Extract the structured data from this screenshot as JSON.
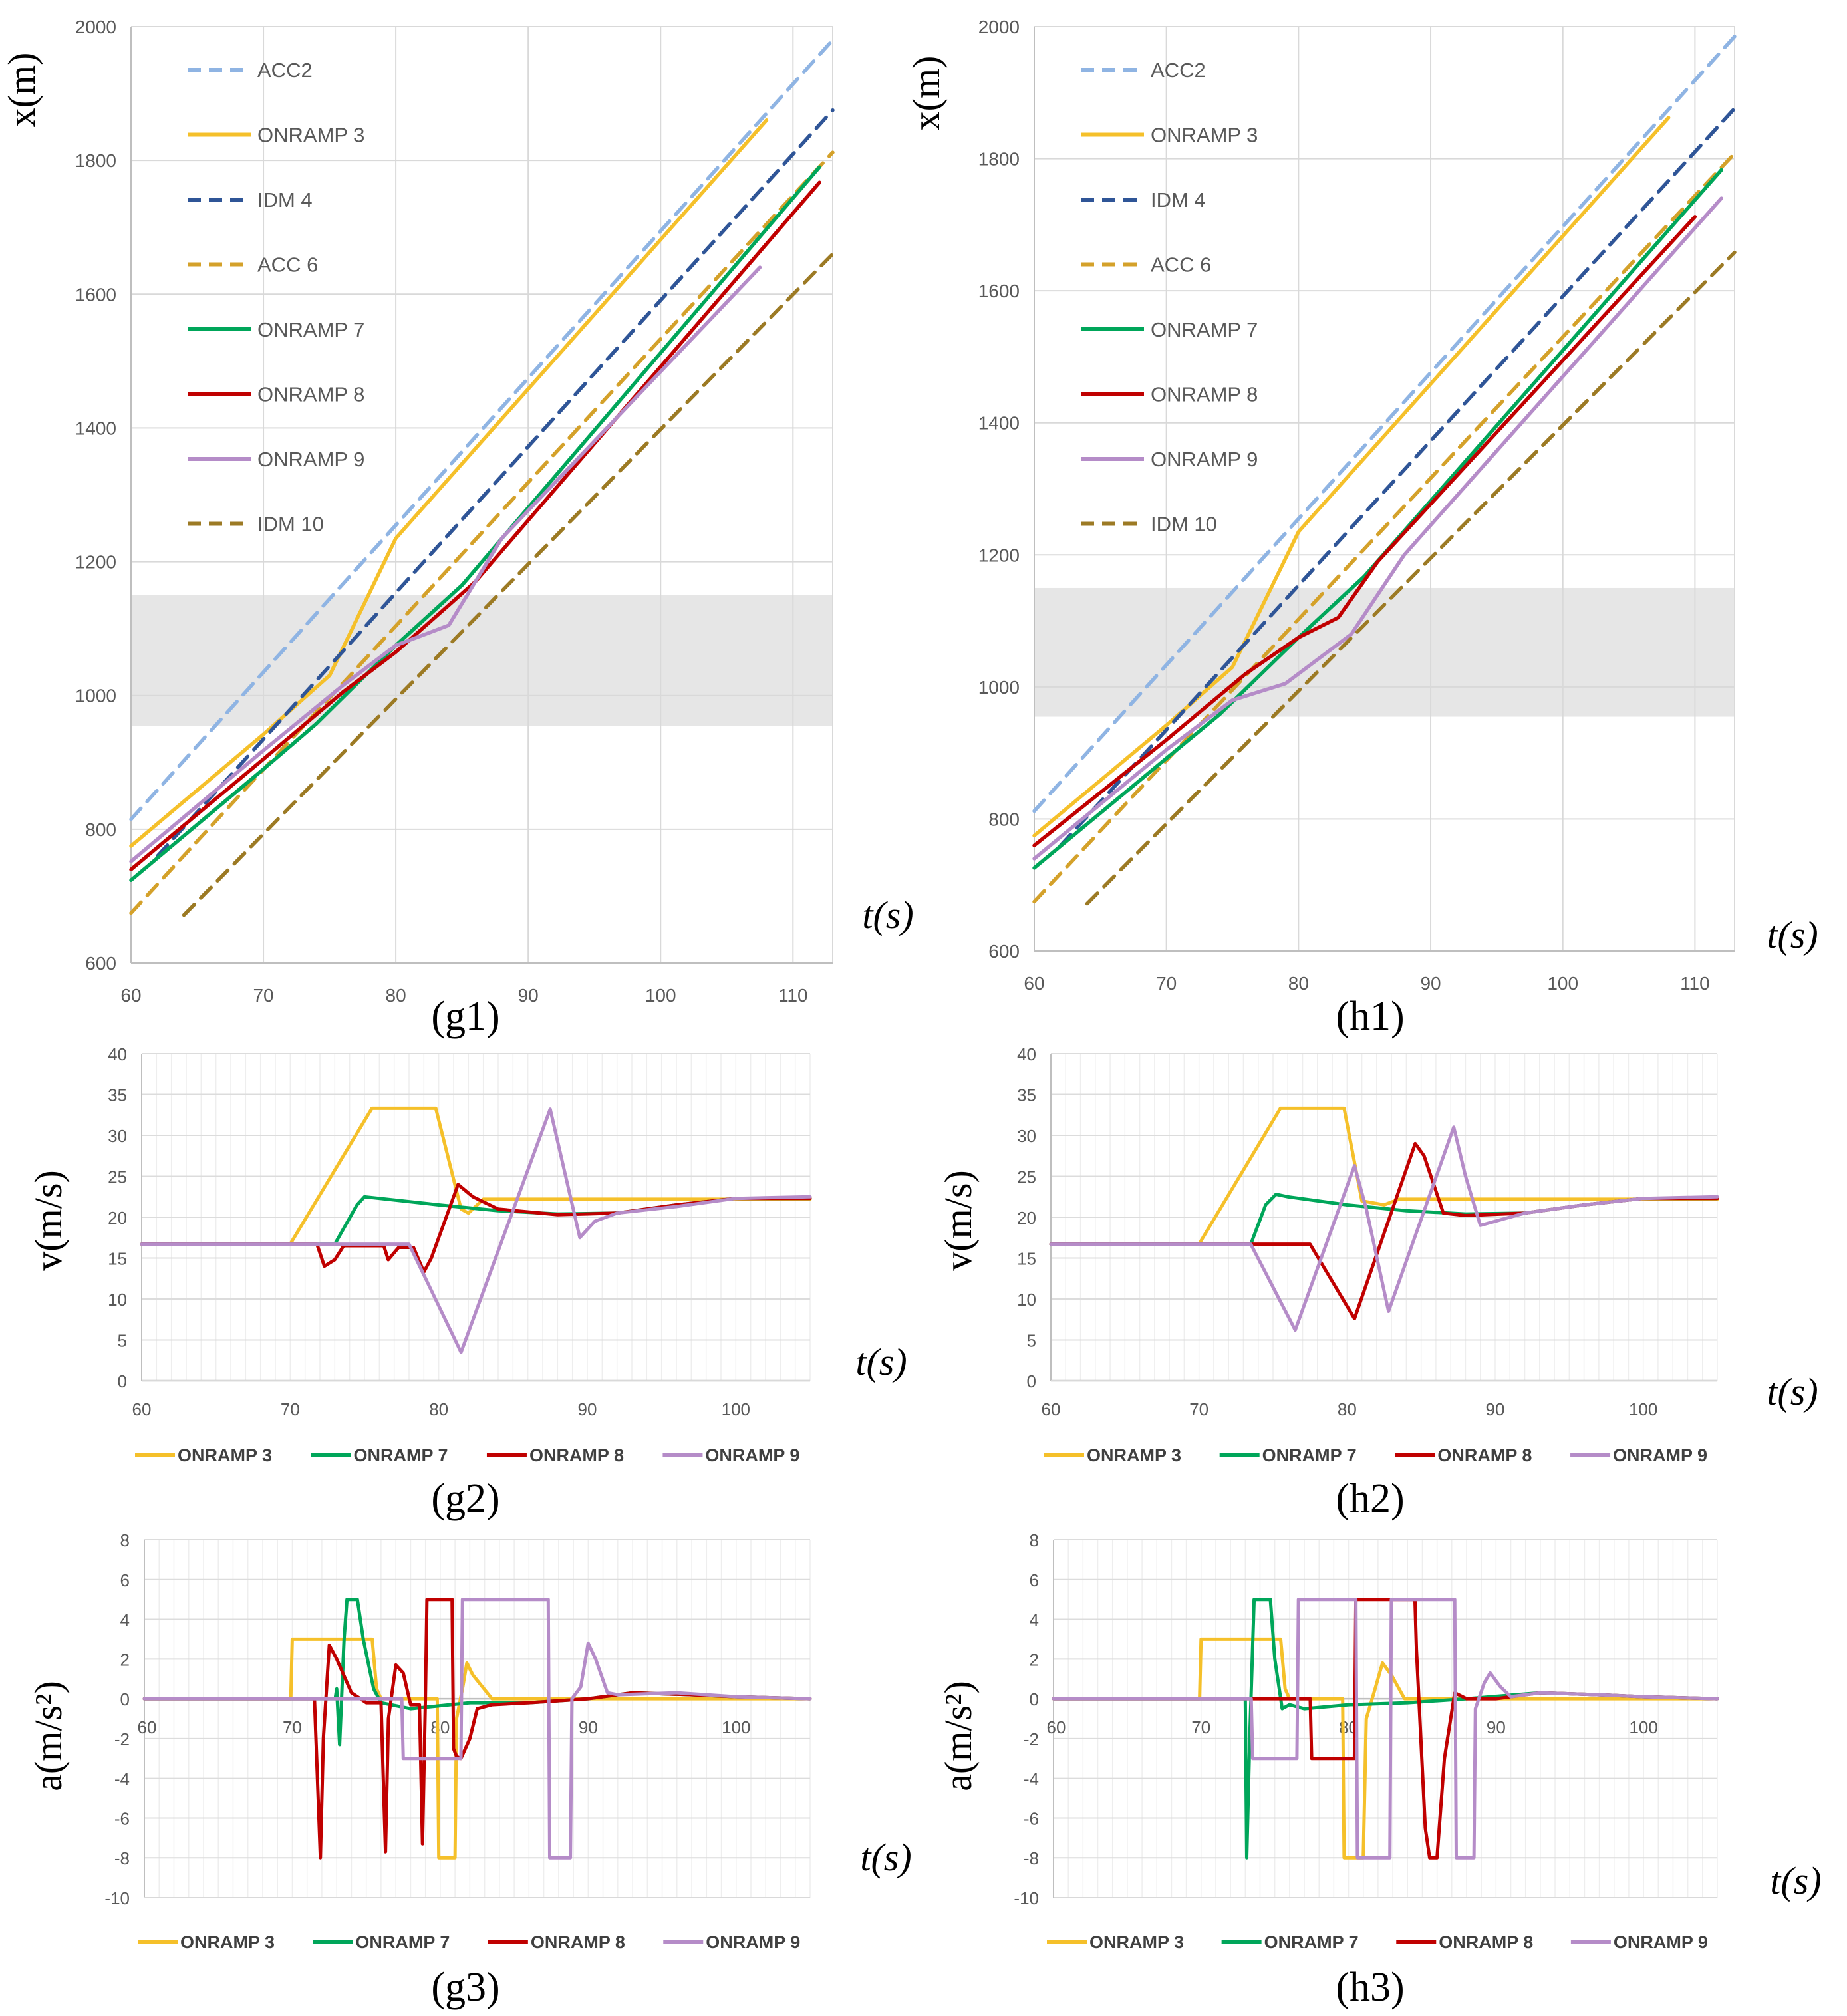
{
  "series_styles": {
    "ACC2": {
      "color": "#8FB4E3",
      "dash": true
    },
    "ONRAMP 3": {
      "color": "#F5C02A",
      "dash": false
    },
    "IDM 4": {
      "color": "#2F5597",
      "dash": true
    },
    "ACC 6": {
      "color": "#D4A12A",
      "dash": true
    },
    "ONRAMP 7": {
      "color": "#00A65A",
      "dash": false
    },
    "ONRAMP 8": {
      "color": "#C00000",
      "dash": false
    },
    "ONRAMP 9": {
      "color": "#B58CC8",
      "dash": false
    },
    "IDM 10": {
      "color": "#9C7A24",
      "dash": true
    }
  },
  "chart_data": [
    {
      "id": "g1",
      "type": "line",
      "label": "(g1)",
      "xlabel": "t(s)",
      "ylabel": "x(m)",
      "xlim": [
        60,
        113
      ],
      "ylim": [
        600,
        2000
      ],
      "xticks": [
        60,
        70,
        80,
        90,
        100,
        110
      ],
      "yticks": [
        600,
        800,
        1000,
        1200,
        1400,
        1600,
        1800,
        2000
      ],
      "shaded_band": [
        955,
        1150
      ],
      "legend": [
        "ACC2",
        "ONRAMP 3",
        "IDM 4",
        "ACC 6",
        "ONRAMP 7",
        "ONRAMP 8",
        "ONRAMP 9",
        "IDM 10"
      ],
      "series": [
        {
          "name": "ACC2",
          "x": [
            60,
            113
          ],
          "y": [
            815,
            1980
          ]
        },
        {
          "name": "ONRAMP 3",
          "x": [
            60,
            70,
            75,
            80,
            108
          ],
          "y": [
            775,
            942,
            1030,
            1235,
            1860
          ]
        },
        {
          "name": "IDM 4",
          "x": [
            62,
            113
          ],
          "y": [
            760,
            1875
          ]
        },
        {
          "name": "ACC 6",
          "x": [
            60,
            113
          ],
          "y": [
            675,
            1812
          ]
        },
        {
          "name": "ONRAMP 7",
          "x": [
            60,
            70,
            74,
            80,
            85,
            112
          ],
          "y": [
            724,
            890,
            958,
            1075,
            1165,
            1790
          ]
        },
        {
          "name": "ONRAMP 8",
          "x": [
            60,
            70,
            76,
            80,
            86,
            112
          ],
          "y": [
            740,
            905,
            1005,
            1065,
            1170,
            1767
          ]
        },
        {
          "name": "ONRAMP 9",
          "x": [
            60,
            70,
            76,
            80,
            84,
            88,
            107.5
          ],
          "y": [
            752,
            918,
            1015,
            1075,
            1105,
            1235,
            1640
          ]
        },
        {
          "name": "IDM 10",
          "x": [
            64,
            113
          ],
          "y": [
            672,
            1660
          ]
        }
      ]
    },
    {
      "id": "h1",
      "type": "line",
      "label": "(h1)",
      "xlabel": "t(s)",
      "ylabel": "x(m)",
      "xlim": [
        60,
        113
      ],
      "ylim": [
        600,
        2000
      ],
      "xticks": [
        60,
        70,
        80,
        90,
        100,
        110
      ],
      "yticks": [
        600,
        800,
        1000,
        1200,
        1400,
        1600,
        1800,
        2000
      ],
      "shaded_band": [
        955,
        1150
      ],
      "legend": [
        "ACC2",
        "ONRAMP 3",
        "IDM 4",
        "ACC 6",
        "ONRAMP 7",
        "ONRAMP 8",
        "ONRAMP 9",
        "IDM 10"
      ],
      "series": [
        {
          "name": "ACC2",
          "x": [
            60,
            113
          ],
          "y": [
            812,
            1985
          ]
        },
        {
          "name": "ONRAMP 3",
          "x": [
            60,
            70,
            75,
            80,
            108
          ],
          "y": [
            775,
            942,
            1030,
            1235,
            1862
          ]
        },
        {
          "name": "IDM 4",
          "x": [
            62,
            113
          ],
          "y": [
            760,
            1876
          ]
        },
        {
          "name": "ACC 6",
          "x": [
            60,
            113
          ],
          "y": [
            675,
            1808
          ]
        },
        {
          "name": "ONRAMP 7",
          "x": [
            60,
            70,
            74,
            80,
            85,
            112
          ],
          "y": [
            726,
            892,
            958,
            1075,
            1168,
            1783
          ]
        },
        {
          "name": "ONRAMP 8",
          "x": [
            60,
            70,
            76,
            80,
            83,
            86,
            110
          ],
          "y": [
            760,
            920,
            1020,
            1075,
            1105,
            1190,
            1712
          ]
        },
        {
          "name": "ONRAMP 9",
          "x": [
            60,
            70,
            75,
            79,
            84,
            88,
            112
          ],
          "y": [
            740,
            905,
            980,
            1005,
            1080,
            1200,
            1740
          ]
        },
        {
          "name": "IDM 10",
          "x": [
            64,
            113
          ],
          "y": [
            672,
            1658
          ]
        }
      ]
    },
    {
      "id": "g2",
      "type": "line",
      "label": "(g2)",
      "xlabel": "t(s)",
      "ylabel": "v(m/s)",
      "xlim": [
        60,
        105
      ],
      "ylim": [
        0,
        40
      ],
      "xticks": [
        60,
        70,
        80,
        90,
        100
      ],
      "yticks": [
        0,
        5,
        10,
        15,
        20,
        25,
        30,
        35,
        40
      ],
      "legend": [
        "ONRAMP 3",
        "ONRAMP 7",
        "ONRAMP 8",
        "ONRAMP 9"
      ],
      "series": [
        {
          "name": "ONRAMP 3",
          "x": [
            60,
            70,
            75.5,
            79.8,
            81.5,
            82,
            83,
            105
          ],
          "y": [
            16.7,
            16.7,
            33.3,
            33.3,
            21,
            20.5,
            22.2,
            22.2
          ]
        },
        {
          "name": "ONRAMP 7",
          "x": [
            60,
            73,
            74.5,
            75,
            76,
            80,
            84,
            88,
            92,
            96,
            100,
            105
          ],
          "y": [
            16.7,
            16.7,
            21.5,
            22.5,
            22.3,
            21.5,
            20.8,
            20.4,
            20.5,
            21.5,
            22.3,
            22.3
          ]
        },
        {
          "name": "ONRAMP 8",
          "x": [
            60,
            71.8,
            72.3,
            73,
            73.6,
            76.3,
            76.6,
            77.3,
            78.3,
            79,
            79.5,
            81,
            81.3,
            82.3,
            84,
            88,
            92,
            96,
            100,
            105
          ],
          "y": [
            16.7,
            16.7,
            14,
            14.8,
            16.5,
            16.5,
            14.8,
            16.3,
            16.3,
            13.3,
            15,
            22.5,
            24,
            22.5,
            21,
            20.3,
            20.5,
            21.5,
            22.3,
            22.3
          ]
        },
        {
          "name": "ONRAMP 9",
          "x": [
            60,
            78,
            81.5,
            87.5,
            89.5,
            90.5,
            92,
            96,
            100,
            105
          ],
          "y": [
            16.7,
            16.7,
            3.5,
            33.2,
            17.5,
            19.5,
            20.5,
            21.3,
            22.3,
            22.5
          ]
        }
      ]
    },
    {
      "id": "h2",
      "type": "line",
      "label": "(h2)",
      "xlabel": "t(s)",
      "ylabel": "v(m/s)",
      "xlim": [
        60,
        105
      ],
      "ylim": [
        0,
        40
      ],
      "xticks": [
        60,
        70,
        80,
        90,
        100
      ],
      "yticks": [
        0,
        5,
        10,
        15,
        20,
        25,
        30,
        35,
        40
      ],
      "legend": [
        "ONRAMP 3",
        "ONRAMP 7",
        "ONRAMP 8",
        "ONRAMP 9"
      ],
      "series": [
        {
          "name": "ONRAMP 3",
          "x": [
            60,
            70,
            75.5,
            79.8,
            81,
            82.5,
            83.5,
            105
          ],
          "y": [
            16.7,
            16.7,
            33.3,
            33.3,
            22,
            21.5,
            22.2,
            22.2
          ]
        },
        {
          "name": "ONRAMP 7",
          "x": [
            60,
            73.5,
            74.5,
            75.2,
            76,
            80,
            84,
            88,
            92,
            96,
            100,
            105
          ],
          "y": [
            16.7,
            16.7,
            21.5,
            22.8,
            22.5,
            21.5,
            20.8,
            20.4,
            20.5,
            21.5,
            22.3,
            22.3
          ]
        },
        {
          "name": "ONRAMP 8",
          "x": [
            60,
            77.5,
            80.5,
            84.6,
            85.2,
            86.5,
            88,
            92,
            96,
            100,
            105
          ],
          "y": [
            16.7,
            16.7,
            7.6,
            29,
            27.5,
            20.5,
            20.2,
            20.5,
            21.5,
            22.3,
            22.3
          ]
        },
        {
          "name": "ONRAMP 9",
          "x": [
            60,
            73.5,
            76.5,
            80.5,
            81.3,
            82.8,
            87.2,
            88,
            89,
            92,
            96,
            100,
            105
          ],
          "y": [
            16.7,
            16.7,
            6.2,
            26.3,
            21,
            8.5,
            31,
            25,
            19,
            20.5,
            21.5,
            22.3,
            22.5
          ]
        }
      ]
    },
    {
      "id": "g3",
      "type": "line",
      "label": "(g3)",
      "xlabel": "t(s)",
      "ylabel": "a(m/s²)",
      "xlim": [
        60,
        105
      ],
      "ylim": [
        -10,
        8
      ],
      "xticks": [
        60,
        70,
        80,
        90,
        100
      ],
      "yticks": [
        -10,
        -8,
        -6,
        -4,
        -2,
        0,
        2,
        4,
        6,
        8
      ],
      "legend": [
        "ONRAMP 3",
        "ONRAMP 7",
        "ONRAMP 8",
        "ONRAMP 9"
      ],
      "series": [
        {
          "name": "ONRAMP 3",
          "x": [
            60,
            69.9,
            70,
            75.4,
            75.7,
            76,
            79.8,
            79.9,
            81,
            81.1,
            81.5,
            81.8,
            82.2,
            83.5,
            105
          ],
          "y": [
            0,
            0,
            3,
            3,
            0.5,
            0,
            0,
            -8,
            -8,
            -1,
            0.5,
            1.8,
            1.2,
            0,
            0
          ]
        },
        {
          "name": "ONRAMP 7",
          "x": [
            60,
            72.9,
            73,
            73.2,
            73.3,
            73.5,
            73.7,
            74.4,
            74.8,
            75.5,
            76,
            78,
            82,
            86,
            90,
            93,
            97,
            100,
            105
          ],
          "y": [
            0,
            0,
            0.5,
            -2.3,
            -0.5,
            3,
            5,
            5,
            3,
            0.5,
            -0.2,
            -0.5,
            -0.2,
            -0.2,
            0,
            0.3,
            0.2,
            0.1,
            0
          ]
        },
        {
          "name": "ONRAMP 8",
          "x": [
            60,
            71.5,
            71.9,
            72.1,
            72.5,
            73,
            74,
            75,
            76,
            76.3,
            76.5,
            77,
            77.5,
            78,
            78.6,
            78.8,
            79,
            79.1,
            79.2,
            80.8,
            80.9,
            81.1,
            81.4,
            82,
            82.5,
            83.5,
            86,
            90,
            93,
            97,
            100,
            105
          ],
          "y": [
            0,
            0,
            -8,
            -2,
            2.7,
            2,
            0.3,
            -0.2,
            -0.2,
            -7.7,
            -1,
            1.7,
            1.3,
            -0.3,
            -0.3,
            -7.3,
            0,
            5,
            5,
            5,
            -2.5,
            -2.9,
            -3,
            -2,
            -0.5,
            -0.3,
            -0.2,
            0,
            0.3,
            0.2,
            0.1,
            0
          ]
        },
        {
          "name": "ONRAMP 9",
          "x": [
            60,
            77.4,
            77.5,
            81.4,
            81.5,
            87.3,
            87.4,
            88.8,
            88.9,
            89.5,
            90,
            90.5,
            91.3,
            92,
            96,
            100,
            105
          ],
          "y": [
            0,
            0,
            -3,
            -3,
            5,
            5,
            -8,
            -8,
            0,
            0.6,
            2.8,
            2,
            0.3,
            0.2,
            0.3,
            0.1,
            0
          ]
        }
      ]
    },
    {
      "id": "h3",
      "type": "line",
      "label": "(h3)",
      "xlabel": "t(s)",
      "ylabel": "a(m/s²)",
      "xlim": [
        60,
        105
      ],
      "ylim": [
        -10,
        8
      ],
      "xticks": [
        60,
        70,
        80,
        90,
        100
      ],
      "yticks": [
        -10,
        -8,
        -6,
        -4,
        -2,
        0,
        2,
        4,
        6,
        8
      ],
      "legend": [
        "ONRAMP 3",
        "ONRAMP 7",
        "ONRAMP 8",
        "ONRAMP 9"
      ],
      "series": [
        {
          "name": "ONRAMP 3",
          "x": [
            60,
            69.9,
            70,
            75.4,
            75.7,
            76,
            79.6,
            79.7,
            81,
            81.2,
            81.8,
            82.3,
            82.9,
            83.8,
            105
          ],
          "y": [
            0,
            0,
            3,
            3,
            0.5,
            0,
            0,
            -8,
            -8,
            -1,
            0.5,
            1.8,
            1.2,
            0,
            0
          ]
        },
        {
          "name": "ONRAMP 7",
          "x": [
            60,
            73,
            73.1,
            73.3,
            73.6,
            74,
            74.7,
            75,
            75.5,
            76,
            77,
            80,
            84,
            88,
            93,
            97,
            100,
            105
          ],
          "y": [
            0,
            0,
            -8,
            -2,
            5,
            5,
            5,
            2,
            -0.5,
            -0.3,
            -0.5,
            -0.3,
            -0.2,
            0,
            0.3,
            0.2,
            0.1,
            0
          ]
        },
        {
          "name": "ONRAMP 8",
          "x": [
            60,
            77.4,
            77.5,
            80.4,
            80.5,
            84.5,
            84.6,
            85.2,
            85.5,
            86,
            86.5,
            87.2,
            88,
            90,
            93,
            97,
            100,
            105
          ],
          "y": [
            0,
            0,
            -3,
            -3,
            5,
            5,
            2.5,
            -6.5,
            -8,
            -8,
            -3,
            0.3,
            0,
            0,
            0.3,
            0.2,
            0.1,
            0
          ]
        },
        {
          "name": "ONRAMP 9",
          "x": [
            60,
            73.4,
            73.5,
            76.5,
            76.6,
            80.5,
            80.6,
            82.8,
            82.9,
            87.2,
            87.3,
            88.5,
            88.6,
            89.2,
            89.6,
            90.3,
            91,
            93,
            97,
            100,
            105
          ],
          "y": [
            0,
            0,
            -3,
            -3,
            5,
            5,
            -8,
            -8,
            5,
            5,
            -8,
            -8,
            -0.5,
            0.8,
            1.3,
            0.6,
            0.1,
            0.3,
            0.2,
            0.1,
            0
          ]
        }
      ]
    }
  ]
}
